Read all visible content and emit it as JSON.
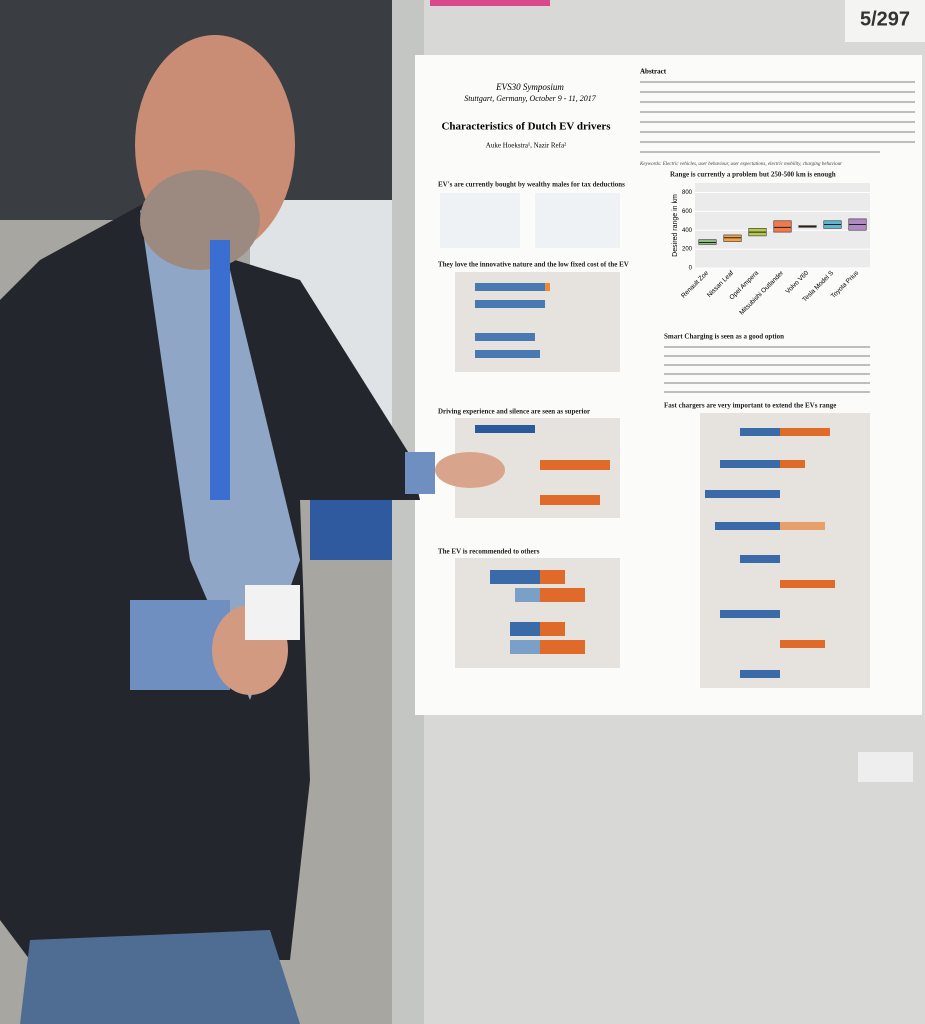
{
  "poster": {
    "page_badge": "5/297",
    "venue": "EVS30 Symposium",
    "place_date": "Stuttgart, Germany, October 9 - 11, 2017",
    "title": "Characteristics of Dutch EV drivers",
    "authors": "Auke Hoekstra¹, Nazir Refa²",
    "abstract_heading": "Abstract",
    "keywords": "Keywords: Electric vehicles, user behaviour, user expectations, electric mobility, charging behaviour",
    "sections": [
      "EV's are currently bought by wealthy males for tax deductions",
      "They love the innovative nature and the low fixed cost of the EV",
      "Driving experience and silence are seen as superior",
      "The EV is recommended to others",
      "Range is currently a problem but 250-500 km is enough",
      "Smart Charging is seen as a good option",
      "Fast chargers are very important to extend the EVs range"
    ],
    "range_chart": {
      "type": "box",
      "y_label": "Desired range in km",
      "categories": [
        "Renault Zoe",
        "Nissan Leaf",
        "Opel Ampera",
        "Mitsubishi Outlander",
        "Volvo V60",
        "Tesla Model S",
        "Toyota Prius"
      ],
      "colors": [
        "#8fbf7f",
        "#f0a24a",
        "#b6c94a",
        "#f07a4a",
        "#e08a6a",
        "#5ab8d4",
        "#b088c4"
      ],
      "q1": [
        250,
        280,
        340,
        380,
        430,
        420,
        400
      ],
      "median": [
        270,
        320,
        380,
        430,
        440,
        460,
        460
      ],
      "q3": [
        300,
        350,
        420,
        500,
        450,
        500,
        520
      ],
      "ylim": [
        0,
        900
      ],
      "yticks": [
        0,
        200,
        400,
        600,
        800
      ]
    }
  }
}
